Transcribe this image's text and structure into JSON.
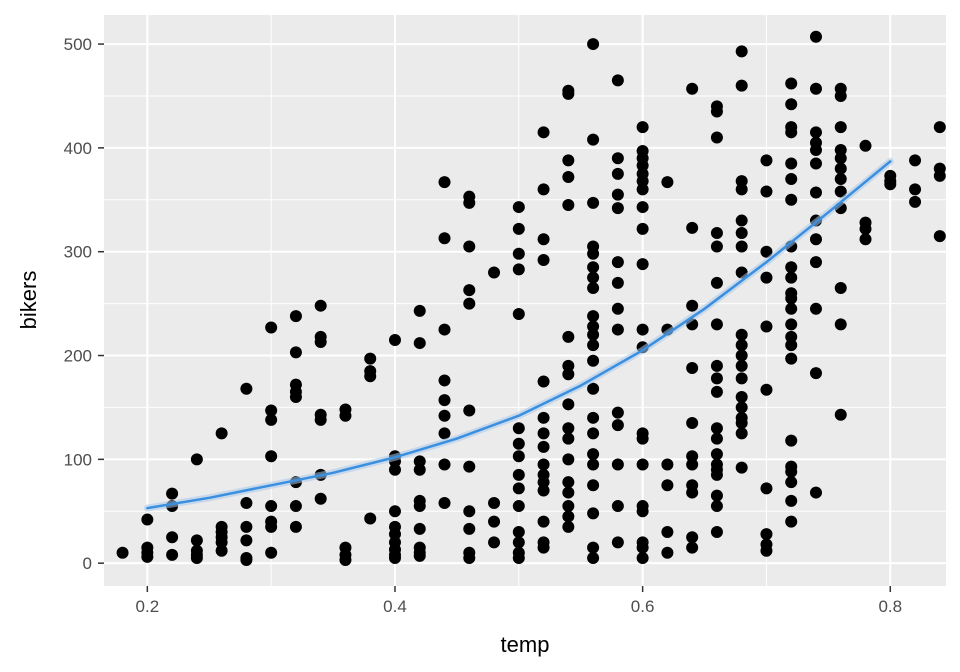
{
  "chart_data": {
    "type": "scatter",
    "xlabel": "temp",
    "ylabel": "bikers",
    "xlim": [
      0.165,
      0.845
    ],
    "ylim": [
      -22,
      528
    ],
    "x_ticks": [
      {
        "value": 0.2,
        "label": "0.2"
      },
      {
        "value": 0.4,
        "label": "0.4"
      },
      {
        "value": 0.6,
        "label": "0.6"
      },
      {
        "value": 0.8,
        "label": "0.8"
      }
    ],
    "y_ticks": [
      {
        "value": 0,
        "label": "0"
      },
      {
        "value": 100,
        "label": "100"
      },
      {
        "value": 200,
        "label": "200"
      },
      {
        "value": 300,
        "label": "300"
      },
      {
        "value": 400,
        "label": "400"
      },
      {
        "value": 500,
        "label": "500"
      }
    ],
    "grid": true,
    "colors": {
      "panel": "#ebebeb",
      "grid": "#ffffff",
      "points": "#000000",
      "trend": "#3a8fe0"
    },
    "trend_line": {
      "x": [
        0.2,
        0.25,
        0.3,
        0.35,
        0.4,
        0.45,
        0.5,
        0.55,
        0.6,
        0.65,
        0.7,
        0.75,
        0.8
      ],
      "y": [
        53,
        63,
        75,
        87,
        102,
        120,
        142,
        171,
        205,
        245,
        290,
        338,
        387
      ]
    },
    "points": [
      [
        0.18,
        10
      ],
      [
        0.2,
        42
      ],
      [
        0.2,
        15
      ],
      [
        0.2,
        10
      ],
      [
        0.2,
        6
      ],
      [
        0.22,
        67
      ],
      [
        0.22,
        55
      ],
      [
        0.22,
        25
      ],
      [
        0.22,
        8
      ],
      [
        0.24,
        100
      ],
      [
        0.24,
        22
      ],
      [
        0.24,
        12
      ],
      [
        0.24,
        8
      ],
      [
        0.24,
        5
      ],
      [
        0.26,
        125
      ],
      [
        0.26,
        35
      ],
      [
        0.26,
        30
      ],
      [
        0.26,
        25
      ],
      [
        0.26,
        20
      ],
      [
        0.26,
        12
      ],
      [
        0.28,
        168
      ],
      [
        0.28,
        58
      ],
      [
        0.28,
        35
      ],
      [
        0.28,
        22
      ],
      [
        0.28,
        5
      ],
      [
        0.28,
        3
      ],
      [
        0.3,
        227
      ],
      [
        0.3,
        147
      ],
      [
        0.3,
        138
      ],
      [
        0.3,
        103
      ],
      [
        0.3,
        55
      ],
      [
        0.3,
        40
      ],
      [
        0.3,
        35
      ],
      [
        0.3,
        10
      ],
      [
        0.32,
        238
      ],
      [
        0.32,
        203
      ],
      [
        0.32,
        172
      ],
      [
        0.32,
        165
      ],
      [
        0.32,
        160
      ],
      [
        0.32,
        78
      ],
      [
        0.32,
        55
      ],
      [
        0.32,
        35
      ],
      [
        0.34,
        248
      ],
      [
        0.34,
        218
      ],
      [
        0.34,
        213
      ],
      [
        0.34,
        143
      ],
      [
        0.34,
        138
      ],
      [
        0.34,
        85
      ],
      [
        0.34,
        62
      ],
      [
        0.36,
        148
      ],
      [
        0.36,
        142
      ],
      [
        0.36,
        15
      ],
      [
        0.36,
        8
      ],
      [
        0.36,
        3
      ],
      [
        0.38,
        197
      ],
      [
        0.38,
        185
      ],
      [
        0.38,
        180
      ],
      [
        0.38,
        43
      ],
      [
        0.4,
        215
      ],
      [
        0.4,
        103
      ],
      [
        0.4,
        98
      ],
      [
        0.4,
        90
      ],
      [
        0.4,
        50
      ],
      [
        0.4,
        35
      ],
      [
        0.4,
        28
      ],
      [
        0.4,
        20
      ],
      [
        0.4,
        13
      ],
      [
        0.4,
        8
      ],
      [
        0.4,
        5
      ],
      [
        0.42,
        243
      ],
      [
        0.42,
        212
      ],
      [
        0.42,
        98
      ],
      [
        0.42,
        90
      ],
      [
        0.42,
        60
      ],
      [
        0.42,
        55
      ],
      [
        0.42,
        33
      ],
      [
        0.42,
        15
      ],
      [
        0.42,
        10
      ],
      [
        0.42,
        7
      ],
      [
        0.44,
        367
      ],
      [
        0.44,
        313
      ],
      [
        0.44,
        225
      ],
      [
        0.44,
        176
      ],
      [
        0.44,
        157
      ],
      [
        0.44,
        142
      ],
      [
        0.44,
        125
      ],
      [
        0.44,
        95
      ],
      [
        0.44,
        58
      ],
      [
        0.46,
        353
      ],
      [
        0.46,
        347
      ],
      [
        0.46,
        305
      ],
      [
        0.46,
        263
      ],
      [
        0.46,
        250
      ],
      [
        0.46,
        147
      ],
      [
        0.46,
        93
      ],
      [
        0.46,
        50
      ],
      [
        0.46,
        33
      ],
      [
        0.46,
        10
      ],
      [
        0.46,
        5
      ],
      [
        0.48,
        280
      ],
      [
        0.48,
        58
      ],
      [
        0.48,
        40
      ],
      [
        0.48,
        20
      ],
      [
        0.5,
        343
      ],
      [
        0.5,
        322
      ],
      [
        0.5,
        298
      ],
      [
        0.5,
        283
      ],
      [
        0.5,
        240
      ],
      [
        0.5,
        130
      ],
      [
        0.5,
        115
      ],
      [
        0.5,
        103
      ],
      [
        0.5,
        85
      ],
      [
        0.5,
        72
      ],
      [
        0.5,
        55
      ],
      [
        0.5,
        30
      ],
      [
        0.5,
        20
      ],
      [
        0.5,
        10
      ],
      [
        0.5,
        5
      ],
      [
        0.52,
        415
      ],
      [
        0.52,
        360
      ],
      [
        0.52,
        312
      ],
      [
        0.52,
        292
      ],
      [
        0.52,
        175
      ],
      [
        0.52,
        140
      ],
      [
        0.52,
        125
      ],
      [
        0.52,
        112
      ],
      [
        0.52,
        95
      ],
      [
        0.52,
        85
      ],
      [
        0.52,
        78
      ],
      [
        0.52,
        70
      ],
      [
        0.52,
        40
      ],
      [
        0.52,
        20
      ],
      [
        0.52,
        15
      ],
      [
        0.54,
        455
      ],
      [
        0.54,
        452
      ],
      [
        0.54,
        388
      ],
      [
        0.54,
        372
      ],
      [
        0.54,
        345
      ],
      [
        0.54,
        218
      ],
      [
        0.54,
        190
      ],
      [
        0.54,
        182
      ],
      [
        0.54,
        153
      ],
      [
        0.54,
        130
      ],
      [
        0.54,
        120
      ],
      [
        0.54,
        100
      ],
      [
        0.54,
        78
      ],
      [
        0.54,
        68
      ],
      [
        0.54,
        55
      ],
      [
        0.54,
        45
      ],
      [
        0.54,
        35
      ],
      [
        0.56,
        500
      ],
      [
        0.56,
        408
      ],
      [
        0.56,
        347
      ],
      [
        0.56,
        305
      ],
      [
        0.56,
        298
      ],
      [
        0.56,
        285
      ],
      [
        0.56,
        275
      ],
      [
        0.56,
        265
      ],
      [
        0.56,
        238
      ],
      [
        0.56,
        228
      ],
      [
        0.56,
        220
      ],
      [
        0.56,
        210
      ],
      [
        0.56,
        195
      ],
      [
        0.56,
        168
      ],
      [
        0.56,
        140
      ],
      [
        0.56,
        125
      ],
      [
        0.56,
        105
      ],
      [
        0.56,
        95
      ],
      [
        0.56,
        75
      ],
      [
        0.56,
        48
      ],
      [
        0.56,
        15
      ],
      [
        0.56,
        5
      ],
      [
        0.58,
        465
      ],
      [
        0.58,
        390
      ],
      [
        0.58,
        375
      ],
      [
        0.58,
        355
      ],
      [
        0.58,
        342
      ],
      [
        0.58,
        290
      ],
      [
        0.58,
        270
      ],
      [
        0.58,
        245
      ],
      [
        0.58,
        225
      ],
      [
        0.58,
        145
      ],
      [
        0.58,
        133
      ],
      [
        0.58,
        95
      ],
      [
        0.58,
        55
      ],
      [
        0.58,
        20
      ],
      [
        0.6,
        420
      ],
      [
        0.6,
        397
      ],
      [
        0.6,
        390
      ],
      [
        0.6,
        383
      ],
      [
        0.6,
        375
      ],
      [
        0.6,
        368
      ],
      [
        0.6,
        360
      ],
      [
        0.6,
        343
      ],
      [
        0.6,
        322
      ],
      [
        0.6,
        288
      ],
      [
        0.6,
        225
      ],
      [
        0.6,
        208
      ],
      [
        0.6,
        125
      ],
      [
        0.6,
        120
      ],
      [
        0.6,
        95
      ],
      [
        0.6,
        55
      ],
      [
        0.6,
        50
      ],
      [
        0.6,
        20
      ],
      [
        0.6,
        15
      ],
      [
        0.6,
        5
      ],
      [
        0.62,
        367
      ],
      [
        0.62,
        225
      ],
      [
        0.62,
        95
      ],
      [
        0.62,
        75
      ],
      [
        0.62,
        30
      ],
      [
        0.62,
        10
      ],
      [
        0.64,
        457
      ],
      [
        0.64,
        323
      ],
      [
        0.64,
        248
      ],
      [
        0.64,
        230
      ],
      [
        0.64,
        188
      ],
      [
        0.64,
        135
      ],
      [
        0.64,
        103
      ],
      [
        0.64,
        95
      ],
      [
        0.64,
        75
      ],
      [
        0.64,
        68
      ],
      [
        0.64,
        25
      ],
      [
        0.64,
        15
      ],
      [
        0.66,
        440
      ],
      [
        0.66,
        435
      ],
      [
        0.66,
        410
      ],
      [
        0.66,
        318
      ],
      [
        0.66,
        305
      ],
      [
        0.66,
        270
      ],
      [
        0.66,
        230
      ],
      [
        0.66,
        190
      ],
      [
        0.66,
        178
      ],
      [
        0.66,
        165
      ],
      [
        0.66,
        130
      ],
      [
        0.66,
        120
      ],
      [
        0.66,
        105
      ],
      [
        0.66,
        95
      ],
      [
        0.66,
        90
      ],
      [
        0.66,
        85
      ],
      [
        0.66,
        65
      ],
      [
        0.66,
        55
      ],
      [
        0.66,
        30
      ],
      [
        0.68,
        493
      ],
      [
        0.68,
        460
      ],
      [
        0.68,
        368
      ],
      [
        0.68,
        360
      ],
      [
        0.68,
        330
      ],
      [
        0.68,
        318
      ],
      [
        0.68,
        305
      ],
      [
        0.68,
        280
      ],
      [
        0.68,
        220
      ],
      [
        0.68,
        210
      ],
      [
        0.68,
        200
      ],
      [
        0.68,
        190
      ],
      [
        0.68,
        178
      ],
      [
        0.68,
        160
      ],
      [
        0.68,
        150
      ],
      [
        0.68,
        140
      ],
      [
        0.68,
        135
      ],
      [
        0.68,
        125
      ],
      [
        0.68,
        92
      ],
      [
        0.7,
        388
      ],
      [
        0.7,
        358
      ],
      [
        0.7,
        300
      ],
      [
        0.7,
        275
      ],
      [
        0.7,
        228
      ],
      [
        0.7,
        167
      ],
      [
        0.7,
        72
      ],
      [
        0.7,
        28
      ],
      [
        0.7,
        18
      ],
      [
        0.7,
        12
      ],
      [
        0.72,
        462
      ],
      [
        0.72,
        442
      ],
      [
        0.72,
        420
      ],
      [
        0.72,
        415
      ],
      [
        0.72,
        385
      ],
      [
        0.72,
        370
      ],
      [
        0.72,
        350
      ],
      [
        0.72,
        305
      ],
      [
        0.72,
        285
      ],
      [
        0.72,
        275
      ],
      [
        0.72,
        260
      ],
      [
        0.72,
        255
      ],
      [
        0.72,
        245
      ],
      [
        0.72,
        230
      ],
      [
        0.72,
        218
      ],
      [
        0.72,
        210
      ],
      [
        0.72,
        197
      ],
      [
        0.72,
        118
      ],
      [
        0.72,
        93
      ],
      [
        0.72,
        88
      ],
      [
        0.72,
        78
      ],
      [
        0.72,
        60
      ],
      [
        0.72,
        40
      ],
      [
        0.74,
        507
      ],
      [
        0.74,
        457
      ],
      [
        0.74,
        415
      ],
      [
        0.74,
        405
      ],
      [
        0.74,
        398
      ],
      [
        0.74,
        385
      ],
      [
        0.74,
        357
      ],
      [
        0.74,
        330
      ],
      [
        0.74,
        312
      ],
      [
        0.74,
        290
      ],
      [
        0.74,
        245
      ],
      [
        0.74,
        183
      ],
      [
        0.74,
        68
      ],
      [
        0.76,
        457
      ],
      [
        0.76,
        450
      ],
      [
        0.76,
        420
      ],
      [
        0.76,
        398
      ],
      [
        0.76,
        390
      ],
      [
        0.76,
        380
      ],
      [
        0.76,
        370
      ],
      [
        0.76,
        358
      ],
      [
        0.76,
        342
      ],
      [
        0.76,
        265
      ],
      [
        0.76,
        230
      ],
      [
        0.76,
        143
      ],
      [
        0.78,
        402
      ],
      [
        0.78,
        328
      ],
      [
        0.78,
        322
      ],
      [
        0.78,
        312
      ],
      [
        0.8,
        373
      ],
      [
        0.8,
        368
      ],
      [
        0.8,
        365
      ],
      [
        0.82,
        388
      ],
      [
        0.82,
        360
      ],
      [
        0.82,
        348
      ],
      [
        0.84,
        420
      ],
      [
        0.84,
        380
      ],
      [
        0.84,
        373
      ],
      [
        0.84,
        315
      ]
    ]
  }
}
